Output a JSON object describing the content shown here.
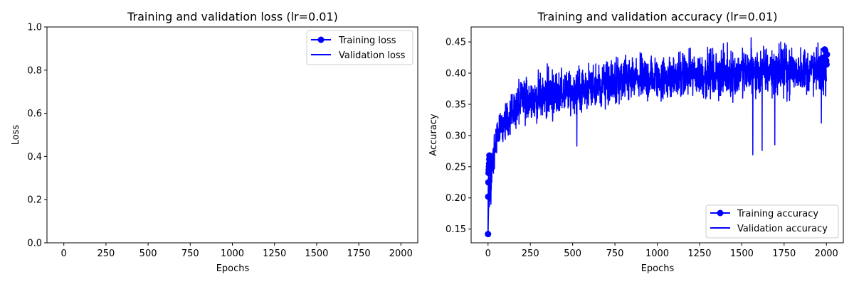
{
  "chart_data": [
    {
      "type": "line",
      "title": "Training and validation loss (lr=0.01)",
      "xlabel": "Epochs",
      "ylabel": "Loss",
      "xlim": [
        -100,
        2100
      ],
      "ylim": [
        0,
        1
      ],
      "x_ticks": [
        0,
        250,
        500,
        750,
        1000,
        1250,
        1500,
        1750,
        2000
      ],
      "y_ticks": [
        "0.0",
        "0.2",
        "0.4",
        "0.6",
        "0.8",
        "1.0"
      ],
      "grid": false,
      "legend_position": "top-right",
      "series": [
        {
          "name": "Training loss",
          "style": "line-with-markers",
          "color": "#0000ff",
          "x": [],
          "y": []
        },
        {
          "name": "Validation loss",
          "style": "line",
          "color": "#0000ff",
          "x": [],
          "y": []
        }
      ]
    },
    {
      "type": "line",
      "title": "Training and validation accuracy (lr=0.01)",
      "xlabel": "Epochs",
      "ylabel": "Accuracy",
      "xlim": [
        -100,
        2100
      ],
      "ylim": [
        0.128,
        0.474
      ],
      "x_ticks": [
        0,
        250,
        500,
        750,
        1000,
        1250,
        1500,
        1750,
        2000
      ],
      "y_ticks": [
        "0.15",
        "0.20",
        "0.25",
        "0.30",
        "0.35",
        "0.40",
        "0.45"
      ],
      "grid": false,
      "legend_position": "bottom-right",
      "series": [
        {
          "name": "Training accuracy",
          "style": "line-with-markers",
          "color": "#0000ff",
          "x": [
            0,
            1,
            2,
            3,
            4,
            5,
            6,
            7,
            8,
            1990,
            1993,
            1996,
            1999,
            2001,
            2003
          ],
          "y": [
            0.142,
            0.202,
            0.225,
            0.24,
            0.245,
            0.25,
            0.255,
            0.262,
            0.268,
            0.438,
            0.436,
            0.428,
            0.42,
            0.414,
            0.43
          ]
        },
        {
          "name": "Validation accuracy",
          "style": "line",
          "color": "#0000ff",
          "x": [
            0,
            5,
            10,
            20,
            30,
            50,
            75,
            100,
            150,
            200,
            250,
            300,
            400,
            500,
            600,
            700,
            800,
            900,
            1000,
            1100,
            1200,
            1300,
            1400,
            1500,
            1600,
            1700,
            1800,
            1900,
            2000
          ],
          "y": [
            0.142,
            0.245,
            0.262,
            0.278,
            0.29,
            0.305,
            0.318,
            0.328,
            0.34,
            0.35,
            0.357,
            0.362,
            0.37,
            0.377,
            0.383,
            0.387,
            0.391,
            0.394,
            0.397,
            0.4,
            0.402,
            0.404,
            0.406,
            0.407,
            0.408,
            0.409,
            0.41,
            0.411,
            0.412
          ],
          "noise_band": [
            {
              "x": 0,
              "low": 0.142,
              "high": 0.25
            },
            {
              "x": 50,
              "low": 0.27,
              "high": 0.33
            },
            {
              "x": 100,
              "low": 0.29,
              "high": 0.355
            },
            {
              "x": 200,
              "low": 0.31,
              "high": 0.4
            },
            {
              "x": 300,
              "low": 0.32,
              "high": 0.405
            },
            {
              "x": 500,
              "low": 0.33,
              "high": 0.41
            },
            {
              "x": 750,
              "low": 0.34,
              "high": 0.43
            },
            {
              "x": 1000,
              "low": 0.35,
              "high": 0.435
            },
            {
              "x": 1250,
              "low": 0.355,
              "high": 0.44
            },
            {
              "x": 1500,
              "low": 0.355,
              "high": 0.445
            },
            {
              "x": 1750,
              "low": 0.36,
              "high": 0.448
            },
            {
              "x": 2000,
              "low": 0.36,
              "high": 0.448
            }
          ],
          "dips": [
            {
              "x": 525,
              "y": 0.283
            },
            {
              "x": 1565,
              "y": 0.269
            },
            {
              "x": 1620,
              "y": 0.276
            },
            {
              "x": 1695,
              "y": 0.285
            },
            {
              "x": 1970,
              "y": 0.32
            }
          ],
          "spikes": [
            {
              "x": 350,
              "y": 0.415
            },
            {
              "x": 1555,
              "y": 0.457
            },
            {
              "x": 1730,
              "y": 0.45
            }
          ]
        }
      ]
    }
  ]
}
